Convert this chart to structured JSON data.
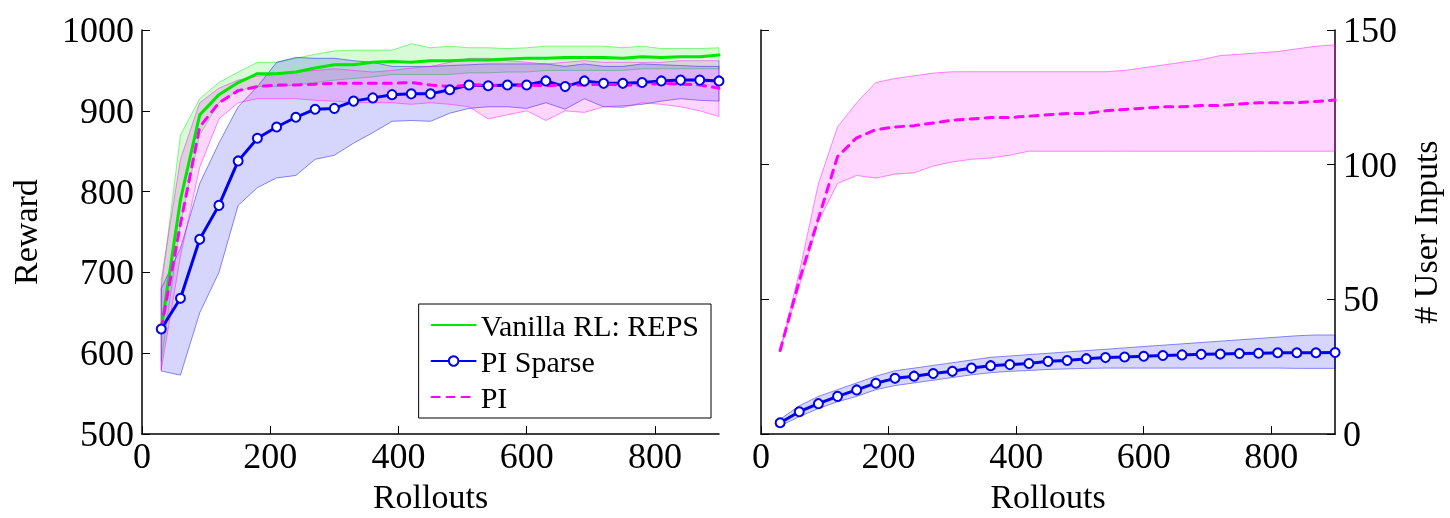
{
  "chart_data": [
    {
      "type": "line",
      "xlabel": "Rollouts",
      "ylabel": "Reward",
      "xlim": [
        0,
        900
      ],
      "xticks": [
        0,
        200,
        400,
        600,
        800
      ],
      "ylim": [
        500,
        1000
      ],
      "yticks": [
        500,
        600,
        700,
        800,
        900,
        1000
      ],
      "grid": false,
      "legend": "bottom right",
      "x": [
        30,
        60,
        90,
        120,
        150,
        180,
        210,
        240,
        270,
        300,
        330,
        360,
        390,
        420,
        450,
        480,
        510,
        540,
        570,
        600,
        630,
        660,
        690,
        720,
        750,
        780,
        810,
        840,
        870,
        900
      ],
      "series": [
        {
          "name": "Vanilla RL: REPS",
          "color": "#00e600",
          "marker": "none",
          "line_style": "solid",
          "values": [
            630,
            790,
            895,
            920,
            935,
            946,
            946,
            948,
            953,
            957,
            957,
            960,
            961,
            960,
            962,
            962,
            963,
            963,
            964,
            965,
            965,
            966,
            966,
            966,
            965,
            967,
            966,
            967,
            967,
            969
          ],
          "lower": [
            590,
            760,
            870,
            910,
            925,
            930,
            930,
            932,
            935,
            938,
            940,
            942,
            945,
            945,
            945,
            945,
            947,
            947,
            948,
            948,
            950,
            950,
            950,
            950,
            950,
            952,
            952,
            952,
            952,
            952
          ],
          "upper": [
            680,
            870,
            915,
            935,
            948,
            960,
            960,
            965,
            970,
            974,
            975,
            975,
            975,
            983,
            978,
            980,
            978,
            978,
            977,
            978,
            980,
            980,
            980,
            980,
            978,
            980,
            977,
            977,
            977,
            978
          ]
        },
        {
          "name": "PI Sparse",
          "color": "#0000ee",
          "marker": "circle",
          "line_style": "solid",
          "values": [
            630,
            668,
            741,
            783,
            838,
            866,
            880,
            892,
            902,
            903,
            912,
            916,
            920,
            921,
            921,
            926,
            932,
            931,
            932,
            932,
            937,
            930,
            937,
            934,
            934,
            935,
            937,
            938,
            938,
            937
          ],
          "lower": [
            578,
            573,
            650,
            700,
            783,
            805,
            817,
            820,
            840,
            845,
            860,
            873,
            887,
            888,
            887,
            897,
            903,
            905,
            905,
            903,
            910,
            902,
            915,
            905,
            906,
            908,
            912,
            915,
            913,
            912
          ],
          "upper": [
            680,
            730,
            810,
            860,
            905,
            930,
            960,
            966,
            965,
            965,
            962,
            960,
            955,
            955,
            955,
            956,
            957,
            958,
            958,
            958,
            958,
            955,
            958,
            955,
            955,
            958,
            957,
            956,
            955,
            955
          ]
        },
        {
          "name": "PI",
          "color": "#ff00ff",
          "marker": "none",
          "line_style": "dashed",
          "values": [
            630,
            760,
            880,
            910,
            925,
            930,
            932,
            932,
            933,
            934,
            934,
            934,
            934,
            935,
            932,
            930,
            932,
            932,
            930,
            932,
            931,
            932,
            932,
            933,
            932,
            932,
            934,
            933,
            932,
            928
          ],
          "lower": [
            580,
            720,
            830,
            890,
            910,
            915,
            915,
            915,
            913,
            912,
            910,
            910,
            910,
            908,
            910,
            908,
            905,
            890,
            895,
            900,
            888,
            900,
            898,
            905,
            904,
            910,
            908,
            905,
            900,
            893
          ],
          "upper": [
            690,
            840,
            910,
            928,
            938,
            943,
            945,
            948,
            950,
            952,
            950,
            948,
            950,
            953,
            955,
            960,
            965,
            965,
            962,
            960,
            958,
            960,
            962,
            960,
            960,
            960,
            960,
            962,
            962,
            962
          ]
        }
      ]
    },
    {
      "type": "line",
      "xlabel": "Rollouts",
      "y2label": "# User Inputs",
      "xlim": [
        0,
        900
      ],
      "xticks": [
        0,
        200,
        400,
        600,
        800
      ],
      "y2lim": [
        0,
        150
      ],
      "y2ticks": [
        0,
        50,
        100,
        150
      ],
      "grid": false,
      "legend": false,
      "x": [
        30,
        60,
        90,
        120,
        150,
        180,
        210,
        240,
        270,
        300,
        330,
        360,
        390,
        420,
        450,
        480,
        510,
        540,
        570,
        600,
        630,
        660,
        690,
        720,
        750,
        780,
        810,
        840,
        870,
        900
      ],
      "series": [
        {
          "color": "#ff00ff",
          "axis": "y2",
          "marker": "none",
          "line_style": "dashed",
          "values": [
            31,
            57,
            80,
            103,
            110,
            113,
            114,
            114.5,
            115.5,
            116.5,
            117,
            117.5,
            117.5,
            118,
            118.5,
            119,
            119,
            120,
            120.5,
            121,
            121.5,
            121.5,
            122,
            122,
            122.5,
            123,
            123,
            123,
            123.5,
            124
          ],
          "lower": [
            31,
            55,
            79,
            93,
            96,
            95,
            96.5,
            97,
            99.5,
            101,
            102,
            102.5,
            103.5,
            105,
            105,
            105,
            105,
            105,
            105,
            105,
            105,
            105,
            105,
            105,
            105,
            105,
            105,
            105,
            105,
            105
          ],
          "upper": [
            31,
            60,
            93,
            114,
            123,
            130.5,
            132,
            133,
            134,
            134.5,
            134.5,
            134.5,
            134.5,
            134.5,
            134.5,
            134.5,
            134.5,
            134.5,
            135,
            136,
            137,
            138,
            139,
            140.5,
            141,
            141.5,
            142,
            143,
            144,
            144.5
          ]
        },
        {
          "color": "#0000ee",
          "axis": "y2",
          "marker": "circle",
          "line_style": "solid",
          "values": [
            4.2,
            8.3,
            11.3,
            14,
            16.4,
            18.9,
            20.7,
            21.5,
            22.5,
            23.3,
            24.5,
            25.4,
            25.8,
            26.2,
            27,
            27.3,
            28,
            28.4,
            28.6,
            28.9,
            29.2,
            29.4,
            29.6,
            29.7,
            29.9,
            30,
            30.2,
            30.2,
            30.2,
            30.3
          ],
          "lower": [
            3,
            6.5,
            9.5,
            12,
            14,
            16.5,
            18,
            19,
            20,
            21,
            22,
            22.8,
            23.3,
            23.6,
            24,
            24.2,
            24.4,
            24.5,
            24.5,
            24.5,
            24.5,
            24.5,
            24.5,
            24.5,
            24.5,
            24.5,
            24.5,
            24.4,
            24.4,
            24.4
          ],
          "upper": [
            5.5,
            10.5,
            14,
            16.5,
            19,
            21.5,
            23.5,
            24.5,
            25.5,
            26.5,
            27.5,
            28.5,
            29,
            29.5,
            30,
            30.5,
            31,
            31.5,
            32,
            32.5,
            33,
            33.5,
            34,
            34.5,
            35,
            35.5,
            36,
            36.5,
            36.8,
            36.8
          ]
        }
      ]
    }
  ]
}
